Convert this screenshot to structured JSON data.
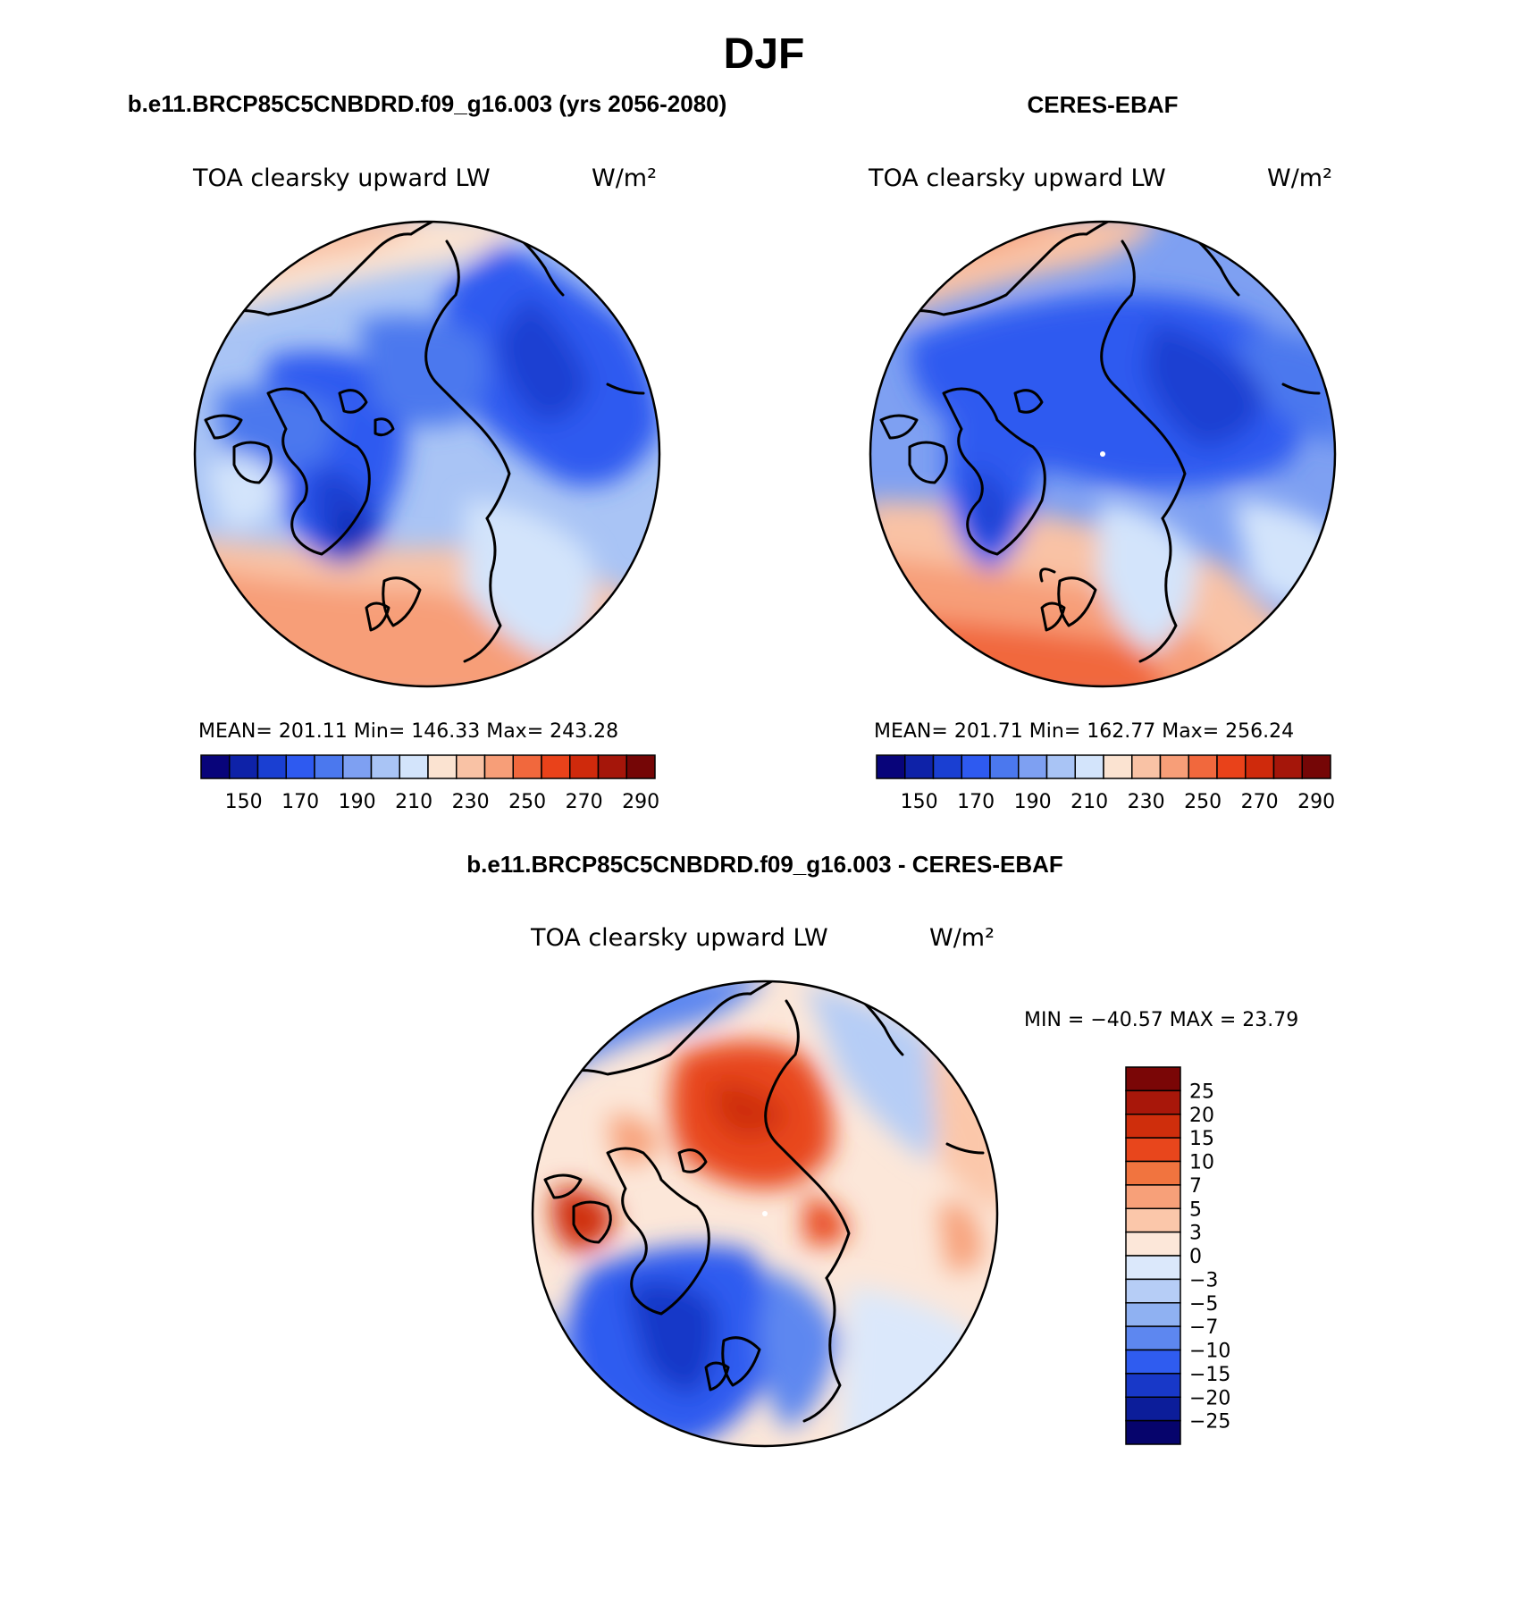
{
  "figure": {
    "season_title": "DJF"
  },
  "panels": {
    "model": {
      "header": "b.e11.BRCP85C5CNBDRD.f09_g16.003 (yrs 2056-2080)",
      "variable": "TOA clearsky upward LW",
      "units": "W/m²",
      "stats": "MEAN= 201.11   Min= 146.33   Max= 243.28"
    },
    "obs": {
      "header": "CERES-EBAF",
      "variable": "TOA clearsky upward LW",
      "units": "W/m²",
      "stats": "MEAN= 201.71   Min= 162.77   Max= 256.24"
    },
    "diff": {
      "header": "b.e11.BRCP85C5CNBDRD.f09_g16.003 - CERES-EBAF",
      "variable": "TOA clearsky upward LW",
      "units": "W/m²",
      "stats": "MIN = −40.57 MAX =   23.79"
    }
  },
  "chart_data": [
    {
      "type": "heatmap",
      "projection": "north polar stereographic",
      "colorbar": {
        "orientation": "horizontal",
        "tick_labels": [
          "150",
          "170",
          "190",
          "210",
          "230",
          "250",
          "270",
          "290"
        ],
        "colors": [
          "#08047a",
          "#0e22a8",
          "#1a3fd2",
          "#2e5af0",
          "#4b78ee",
          "#7ea0f2",
          "#a9c4f5",
          "#d3e4fb",
          "#fbe3d1",
          "#f9c2a5",
          "#f79e78",
          "#f1683d",
          "#e9421a",
          "#cf2a0c",
          "#a5160a",
          "#750606"
        ]
      },
      "fields": [
        {
          "name": "b.e11.BRCP85C5CNBDRD.f09_g16.003 (yrs 2056-2080)",
          "mean": 201.11,
          "min": 146.33,
          "max": 243.28
        },
        {
          "name": "CERES-EBAF",
          "mean": 201.71,
          "min": 162.77,
          "max": 256.24
        }
      ]
    },
    {
      "type": "heatmap",
      "projection": "north polar stereographic",
      "colorbar": {
        "orientation": "vertical",
        "tick_labels": [
          "25",
          "20",
          "15",
          "10",
          "7",
          "5",
          "3",
          "0",
          "−3",
          "−5",
          "−7",
          "−10",
          "−15",
          "−20",
          "−25"
        ],
        "colors": [
          "#7a0606",
          "#a8170a",
          "#cf2e0c",
          "#e8461c",
          "#f1743f",
          "#f7a079",
          "#fbc7aa",
          "#fce7d9",
          "#dbe8fb",
          "#b6cdf6",
          "#8fb1f2",
          "#5d87f0",
          "#2f5cf0",
          "#1838c8",
          "#0c1d9a",
          "#06046c"
        ]
      },
      "min": -40.57,
      "max": 23.79
    }
  ]
}
